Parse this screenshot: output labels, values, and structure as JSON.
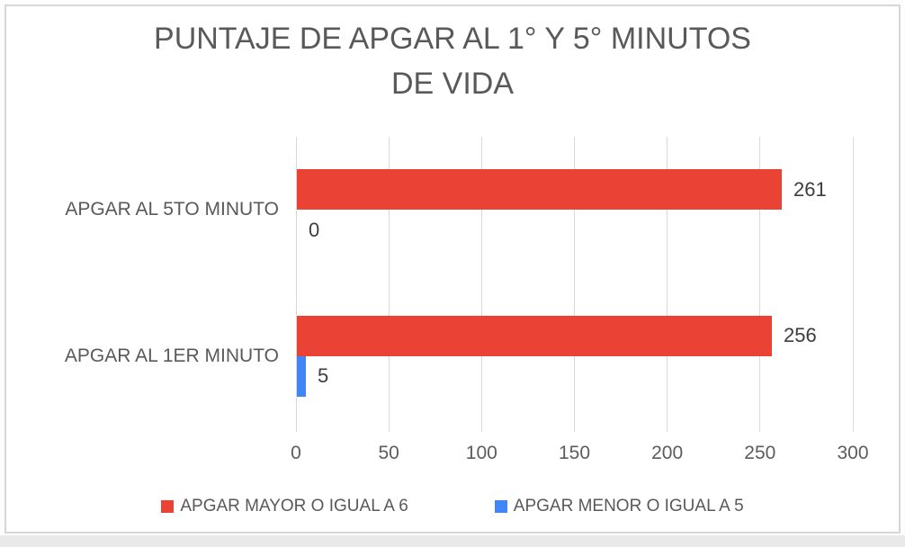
{
  "title_lines": [
    "PUNTAJE DE APGAR AL 1° Y 5° MINUTOS",
    "DE VIDA"
  ],
  "chart_data": {
    "type": "bar",
    "orientation": "horizontal",
    "title": "PUNTAJE DE APGAR AL 1° Y 5° MINUTOS DE VIDA",
    "categories": [
      "APGAR AL 5TO MINUTO",
      "APGAR AL 1ER MINUTO"
    ],
    "series": [
      {
        "name": "APGAR MAYOR O IGUAL A 6",
        "color": "#EA4335",
        "values": [
          261,
          256
        ]
      },
      {
        "name": "APGAR MENOR O IGUAL A 5",
        "color": "#4285F4",
        "values": [
          0,
          5
        ]
      }
    ],
    "xticks": [
      0,
      50,
      100,
      150,
      200,
      250,
      300
    ],
    "xlim": [
      0,
      300
    ],
    "grid": "vertical",
    "gridline_color": "#d9d9d9",
    "legend_position": "bottom",
    "data_labels": true,
    "text_color": "#595959",
    "value_label_color": "#3d3d3d"
  }
}
